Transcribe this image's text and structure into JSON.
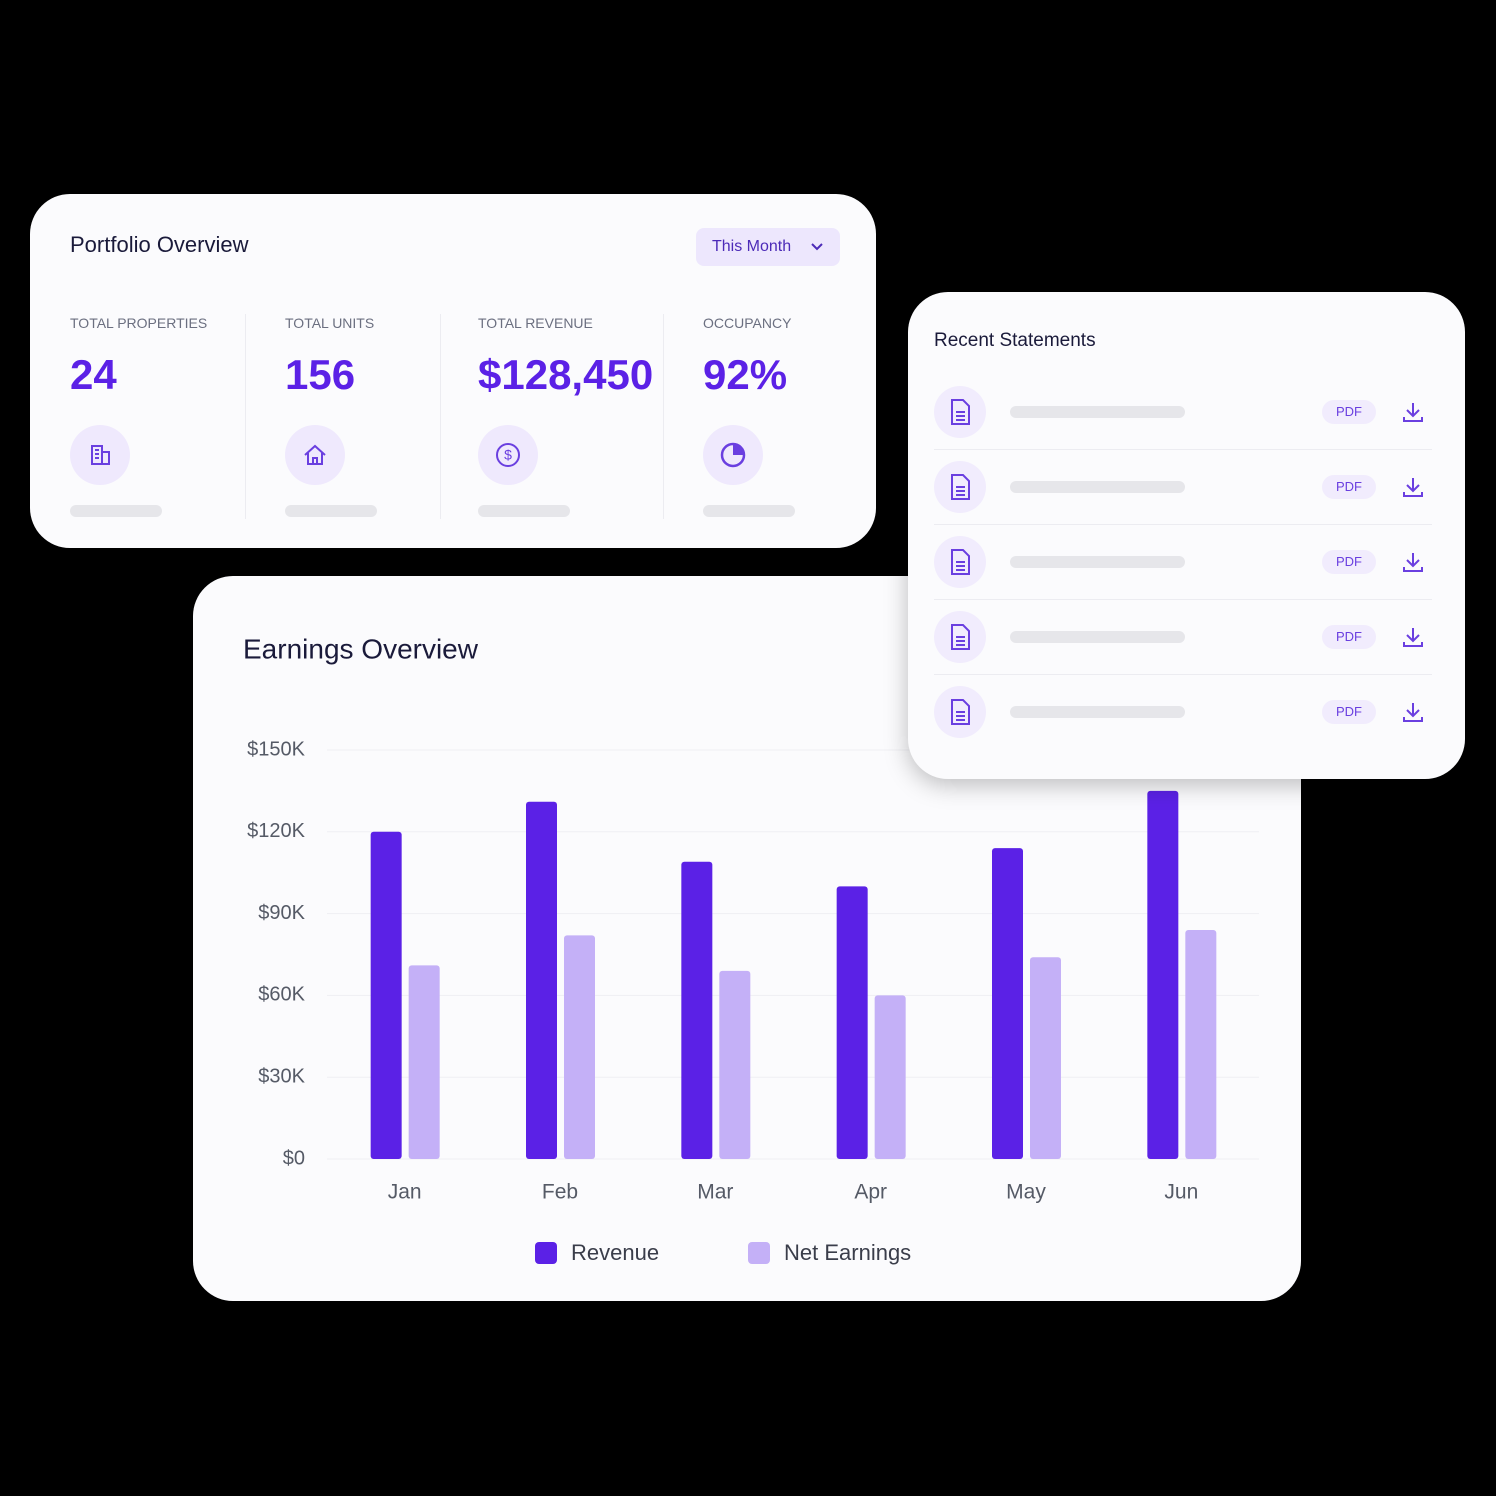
{
  "portfolio": {
    "title": "Portfolio Overview",
    "period": "This Month",
    "metrics": [
      {
        "label": "TOTAL PROPERTIES",
        "value": "24"
      },
      {
        "label": "TOTAL UNITS",
        "value": "156"
      },
      {
        "label": "TOTAL REVENUE",
        "value": "$128,450"
      },
      {
        "label": "OCCUPANCY",
        "value": "92%"
      }
    ]
  },
  "statements": {
    "title": "Recent Statements",
    "rows": [
      {
        "badge": "PDF"
      },
      {
        "badge": "PDF"
      },
      {
        "badge": "PDF"
      },
      {
        "badge": "PDF"
      },
      {
        "badge": "PDF"
      }
    ]
  },
  "chart_data": {
    "type": "bar",
    "title": "Earnings Overview",
    "categories": [
      "Jan",
      "Feb",
      "Mar",
      "Apr",
      "May",
      "Jun"
    ],
    "series": [
      {
        "name": "Revenue",
        "color": "#5b21e6",
        "values": [
          120000,
          131000,
          109000,
          100000,
          114000,
          135000
        ]
      },
      {
        "name": "Net Earnings",
        "color": "#c4b0f7",
        "values": [
          71000,
          82000,
          69000,
          60000,
          74000,
          84000
        ]
      }
    ],
    "ylim": [
      0,
      150000
    ],
    "yticks": [
      {
        "value": 0,
        "label": "$0"
      },
      {
        "value": 30000,
        "label": "$30K"
      },
      {
        "value": 60000,
        "label": "$60K"
      },
      {
        "value": 90000,
        "label": "$90K"
      },
      {
        "value": 120000,
        "label": "$120K"
      },
      {
        "value": 150000,
        "label": "$150K"
      }
    ],
    "grid": true
  }
}
